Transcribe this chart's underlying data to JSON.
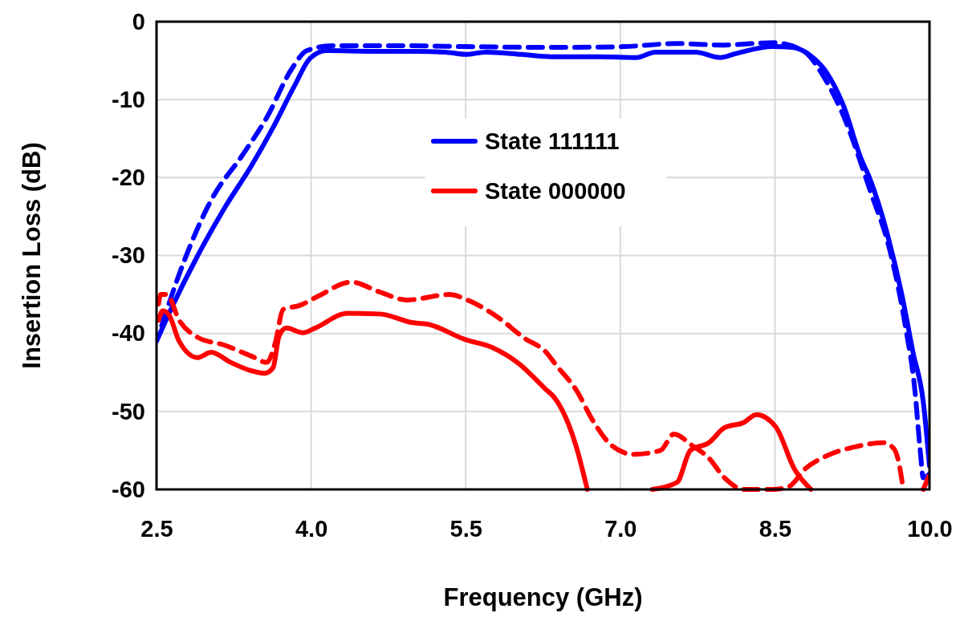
{
  "chart_data": {
    "type": "line",
    "xlabel": "Frequency (GHz)",
    "ylabel": "Insertion Loss (dB)",
    "xlim": [
      2.5,
      10.0
    ],
    "ylim": [
      -60,
      0
    ],
    "xticks": [
      2.5,
      {
        "value": 4,
        "label": "4.0"
      },
      5.5,
      {
        "value": 7,
        "label": "7.0"
      },
      8.5,
      {
        "value": 10,
        "label": "10.0"
      }
    ],
    "yticks": [
      0,
      -10,
      -20,
      -30,
      -40,
      -50,
      -60
    ],
    "grid": true,
    "legend": "top",
    "marker": "none",
    "series": [
      {
        "name": "State 111111",
        "color": "#0000ff",
        "line_style": "solid",
        "x": [
          2.5,
          2.64,
          2.9,
          3.16,
          3.42,
          3.63,
          3.84,
          3.99,
          4.15,
          4.6,
          5.0,
          5.3,
          5.5,
          5.7,
          6.04,
          6.33,
          6.8,
          7.16,
          7.34,
          7.73,
          7.97,
          8.12,
          8.48,
          8.67,
          8.85,
          9.0,
          9.16,
          9.34,
          9.42,
          9.6,
          9.73,
          9.84,
          9.94,
          10.0
        ],
        "values": [
          -41,
          -36.9,
          -30.0,
          -23.9,
          -18.5,
          -13.6,
          -8.2,
          -4.7,
          -3.7,
          -3.8,
          -3.8,
          -3.9,
          -4.2,
          -3.9,
          -4.2,
          -4.5,
          -4.5,
          -4.6,
          -3.9,
          -3.9,
          -4.6,
          -4.1,
          -3.2,
          -3.3,
          -4.4,
          -6.5,
          -10.6,
          -17.7,
          -20.1,
          -27.7,
          -34.9,
          -42.4,
          -48.8,
          -57
        ]
      },
      {
        "color": "#0000ff",
        "line_style": "dashed",
        "x": [
          2.55,
          2.72,
          3.03,
          3.34,
          3.57,
          3.81,
          3.96,
          4.2,
          5.0,
          5.5,
          6.36,
          7.03,
          7.55,
          7.97,
          8.48,
          8.77,
          8.98,
          9.14,
          9.42,
          9.63,
          9.76,
          9.86,
          9.91,
          9.94,
          10.0
        ],
        "values": [
          -39,
          -32.4,
          -22.9,
          -17.0,
          -12.3,
          -6.1,
          -3.7,
          -3.1,
          -3.1,
          -3.2,
          -3.3,
          -3.2,
          -2.8,
          -3.0,
          -2.7,
          -3.7,
          -7.2,
          -11.3,
          -21.5,
          -30.1,
          -38.6,
          -47.5,
          -55.0,
          -58.5,
          -58
        ]
      },
      {
        "name": "State 000000",
        "color": "#ff0000",
        "line_style": "solid",
        "x": [
          2.52,
          2.56,
          2.62,
          2.72,
          2.9,
          3.03,
          3.22,
          3.4,
          3.55,
          3.63,
          3.69,
          3.76,
          3.92,
          4.04,
          4.35,
          4.67,
          4.98,
          5.13,
          5.5,
          5.76,
          6.02,
          6.28,
          6.36,
          6.57,
          6.68,
          7.0,
          7.31,
          7.55,
          7.68,
          7.86,
          8.01,
          8.2,
          8.32,
          8.51,
          8.69,
          8.85
        ],
        "values": [
          -38.3,
          -37.1,
          -37.6,
          -41.0,
          -43.1,
          -42.4,
          -43.7,
          -44.7,
          -45.1,
          -44.4,
          -40.3,
          -39.3,
          -39.9,
          -39.3,
          -37.4,
          -37.5,
          -38.6,
          -38.8,
          -40.8,
          -41.8,
          -43.9,
          -47.2,
          -48.2,
          -54.4,
          -60,
          null,
          -60,
          -59.1,
          -55.0,
          -54.0,
          -52.1,
          -51.4,
          -50.4,
          -52.0,
          -57.4,
          -60
        ]
      },
      {
        "color": "#ff0000",
        "line_style": "dashed",
        "x": [
          2.52,
          2.54,
          2.6,
          2.72,
          2.9,
          3.16,
          3.42,
          3.57,
          3.65,
          3.73,
          3.89,
          4.07,
          4.39,
          4.67,
          4.93,
          5.34,
          5.55,
          5.81,
          6.07,
          6.28,
          6.38,
          6.57,
          6.74,
          6.92,
          7.13,
          7.39,
          7.52,
          7.7,
          7.86,
          8.01,
          8.2,
          8.48,
          8.64,
          8.79,
          9.0,
          9.29,
          9.55,
          9.65,
          9.7,
          9.74,
          9.85,
          9.94,
          10.0
        ],
        "values": [
          -36.2,
          -35.0,
          -35.0,
          -38.3,
          -40.5,
          -41.5,
          -42.9,
          -43.7,
          -41.3,
          -36.9,
          -36.4,
          -35.2,
          -33.4,
          -34.7,
          -35.7,
          -35.0,
          -35.9,
          -37.9,
          -40.6,
          -42.4,
          -44.1,
          -47.2,
          -51.3,
          -54.4,
          -55.5,
          -55.0,
          -52.9,
          -54.4,
          -56.0,
          -58.5,
          -60,
          -60,
          -59.6,
          -57.4,
          -55.7,
          -54.5,
          -54.0,
          -54.7,
          -56.4,
          -59.5,
          null,
          -60,
          -58.1
        ]
      }
    ]
  }
}
